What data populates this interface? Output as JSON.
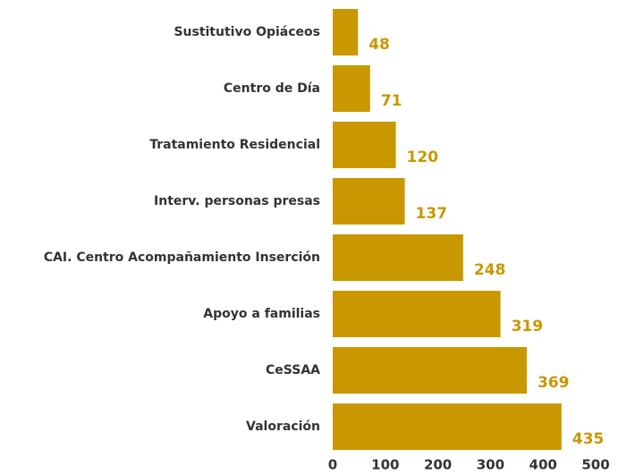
{
  "chart_data": {
    "type": "bar",
    "orientation": "horizontal",
    "categories": [
      "Sustitutivo Opiáceos",
      "Centro de Día",
      "Tratamiento Residencial",
      "Interv. personas presas",
      "CAI. Centro Acompañamiento Inserción",
      "Apoyo a familias",
      "CeSSAA",
      "Valoración"
    ],
    "values": [
      48,
      71,
      120,
      137,
      248,
      319,
      369,
      435
    ],
    "color": "#c99700",
    "xlim": [
      0,
      500
    ],
    "xticks": [
      0,
      100,
      200,
      300,
      400,
      500
    ],
    "grid": false
  }
}
